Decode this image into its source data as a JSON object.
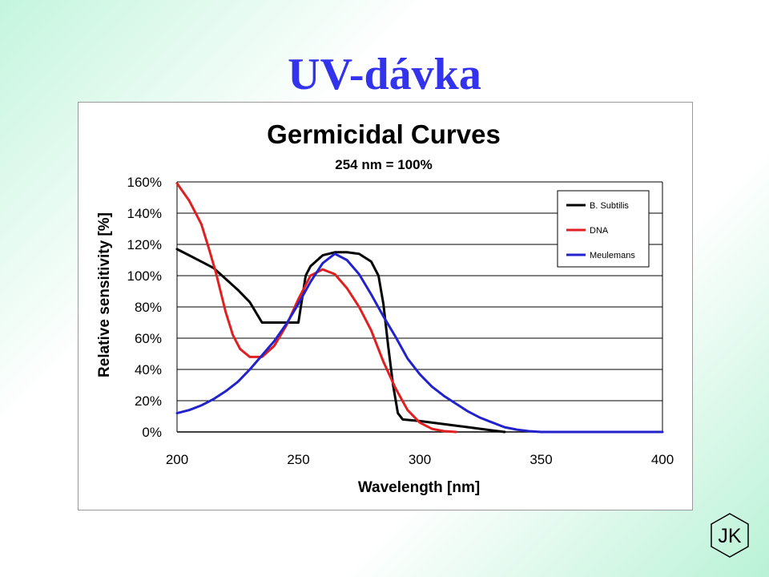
{
  "slide": {
    "title": "UV-dávka",
    "logo_text": "JK"
  },
  "chart_data": {
    "type": "line",
    "title": "Germicidal Curves",
    "subtitle": "254 nm = 100%",
    "xlabel": "Wavelength [nm]",
    "ylabel": "Relative sensitivity [%]",
    "xlim": [
      200,
      400
    ],
    "ylim": [
      0,
      160
    ],
    "x_ticks": [
      200,
      250,
      300,
      350,
      400
    ],
    "y_ticks": [
      0,
      20,
      40,
      60,
      80,
      100,
      120,
      140,
      160
    ],
    "x_tick_labels": [
      "200",
      "250",
      "300",
      "350",
      "400"
    ],
    "y_tick_labels": [
      "0%",
      "20%",
      "40%",
      "60%",
      "80%",
      "100%",
      "120%",
      "140%",
      "160%"
    ],
    "grid": "horizontal",
    "legend_position": "top-right",
    "series": [
      {
        "name": "B. Subtilis",
        "color": "#000000",
        "points": [
          [
            200,
            117
          ],
          [
            205,
            113
          ],
          [
            210,
            109
          ],
          [
            215,
            105
          ],
          [
            220,
            98
          ],
          [
            225,
            91
          ],
          [
            230,
            83
          ],
          [
            235,
            70
          ],
          [
            240,
            70
          ],
          [
            245,
            70
          ],
          [
            250,
            70
          ],
          [
            253,
            100
          ],
          [
            255,
            106
          ],
          [
            260,
            113
          ],
          [
            265,
            115
          ],
          [
            270,
            115
          ],
          [
            275,
            114
          ],
          [
            280,
            109
          ],
          [
            283,
            100
          ],
          [
            285,
            82
          ],
          [
            287,
            55
          ],
          [
            289,
            30
          ],
          [
            291,
            12
          ],
          [
            293,
            8
          ],
          [
            300,
            7
          ],
          [
            310,
            5
          ],
          [
            320,
            3
          ],
          [
            330,
            1
          ],
          [
            335,
            0
          ]
        ]
      },
      {
        "name": "DNA",
        "color": "#e02020",
        "points": [
          [
            200,
            159
          ],
          [
            205,
            148
          ],
          [
            210,
            133
          ],
          [
            213,
            118
          ],
          [
            216,
            102
          ],
          [
            220,
            77
          ],
          [
            223,
            62
          ],
          [
            226,
            53
          ],
          [
            230,
            48
          ],
          [
            235,
            48
          ],
          [
            240,
            55
          ],
          [
            245,
            68
          ],
          [
            250,
            85
          ],
          [
            255,
            100
          ],
          [
            260,
            104
          ],
          [
            265,
            101
          ],
          [
            270,
            92
          ],
          [
            275,
            80
          ],
          [
            280,
            65
          ],
          [
            285,
            45
          ],
          [
            290,
            28
          ],
          [
            295,
            14
          ],
          [
            300,
            6
          ],
          [
            305,
            2
          ],
          [
            310,
            0.5
          ],
          [
            315,
            0
          ]
        ]
      },
      {
        "name": "Meulemans",
        "color": "#2222cc",
        "points": [
          [
            200,
            12
          ],
          [
            205,
            14
          ],
          [
            210,
            17
          ],
          [
            215,
            21
          ],
          [
            220,
            26
          ],
          [
            225,
            32
          ],
          [
            230,
            40
          ],
          [
            235,
            49
          ],
          [
            240,
            58
          ],
          [
            245,
            69
          ],
          [
            250,
            82
          ],
          [
            255,
            96
          ],
          [
            260,
            108
          ],
          [
            265,
            114
          ],
          [
            270,
            110
          ],
          [
            275,
            101
          ],
          [
            280,
            88
          ],
          [
            285,
            74
          ],
          [
            290,
            61
          ],
          [
            295,
            47
          ],
          [
            300,
            37
          ],
          [
            305,
            29
          ],
          [
            310,
            23
          ],
          [
            315,
            18
          ],
          [
            320,
            13
          ],
          [
            325,
            9
          ],
          [
            330,
            6
          ],
          [
            335,
            3
          ],
          [
            340,
            1.5
          ],
          [
            345,
            0.5
          ],
          [
            350,
            0
          ],
          [
            360,
            0
          ],
          [
            370,
            0
          ],
          [
            380,
            0
          ],
          [
            390,
            0
          ],
          [
            400,
            0
          ]
        ]
      }
    ]
  }
}
